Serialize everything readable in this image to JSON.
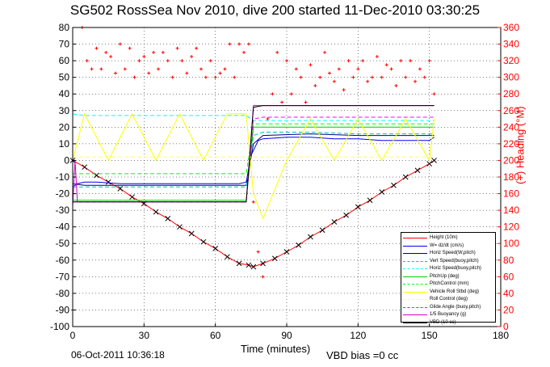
{
  "chart_data": {
    "type": "line",
    "title": "SG502 RossSea Nov 2010, dive 200 started 11-Dec-2010 03:30:25",
    "xlabel": "Time (minutes)",
    "ylabel": "",
    "ylabel_right": "(+) Heading (°M)",
    "xlim": [
      0,
      180
    ],
    "ylim": [
      -100,
      80
    ],
    "ylim_right": [
      0,
      360
    ],
    "x_ticks": [
      0,
      30,
      60,
      90,
      120,
      150,
      180
    ],
    "y_ticks": [
      -100,
      -90,
      -80,
      -70,
      -60,
      -50,
      -40,
      -30,
      -20,
      -10,
      0,
      10,
      20,
      30,
      40,
      50,
      60,
      70,
      80
    ],
    "y_ticks_right": [
      0,
      20,
      40,
      60,
      80,
      100,
      120,
      140,
      160,
      180,
      200,
      220,
      240,
      260,
      280,
      300,
      320,
      340,
      360
    ],
    "grid": true,
    "legend_position": "bottom-right",
    "series": [
      {
        "name": "Height (10m)",
        "color": "#ff0000",
        "style": "solid",
        "marker": "x",
        "x": [
          0,
          5,
          10,
          15,
          20,
          25,
          30,
          35,
          40,
          45,
          50,
          55,
          60,
          65,
          70,
          74,
          76,
          80,
          85,
          90,
          95,
          100,
          105,
          110,
          115,
          120,
          125,
          130,
          135,
          140,
          145,
          150,
          152
        ],
        "y": [
          0,
          -4,
          -9,
          -13,
          -17,
          -22,
          -26,
          -31,
          -35,
          -40,
          -44,
          -49,
          -53,
          -58,
          -62,
          -63,
          -64,
          -62,
          -59,
          -55,
          -51,
          -46,
          -42,
          -37,
          -33,
          -28,
          -24,
          -19,
          -15,
          -10,
          -6,
          -2,
          0
        ]
      },
      {
        "name": "W= dz/dt (cm/s)",
        "color": "#0000ff",
        "style": "solid",
        "x": [
          0,
          2,
          5,
          10,
          20,
          30,
          40,
          50,
          60,
          70,
          73,
          75,
          78,
          80,
          90,
          100,
          110,
          120,
          130,
          140,
          150,
          152
        ],
        "y": [
          -16,
          -14,
          -13,
          -13,
          -14,
          -14,
          -14,
          -14,
          -14,
          -14,
          -13,
          3,
          12,
          13,
          14,
          14,
          13,
          13,
          12,
          12,
          12,
          14
        ]
      },
      {
        "name": "Horiz Speed(W,pitch)",
        "color": "#000080",
        "style": "solid",
        "x": [
          0,
          5,
          20,
          40,
          60,
          73,
          76,
          80,
          100,
          120,
          140,
          152
        ],
        "y": [
          -14,
          -15,
          -15,
          -15,
          -15,
          -15,
          10,
          15,
          16,
          15,
          15,
          15
        ]
      },
      {
        "name": "Vert Speed(buoy,pitch)",
        "color": "#00bfbf",
        "style": "dashed",
        "x": [
          0,
          5,
          20,
          40,
          60,
          73,
          76,
          80,
          100,
          120,
          140,
          152
        ],
        "y": [
          -16,
          -16,
          -16,
          -16,
          -16,
          -16,
          15,
          17,
          17,
          16,
          16,
          16
        ]
      },
      {
        "name": "Horiz Speed(buoy,pitch)",
        "color": "#00ffff",
        "style": "dashed",
        "x": [
          0,
          5,
          20,
          40,
          60,
          73,
          76,
          80,
          100,
          120,
          140,
          152
        ],
        "y": [
          28,
          27,
          27,
          27,
          27,
          27,
          24,
          24,
          24,
          24,
          24,
          24
        ]
      },
      {
        "name": "PitchUp (deg)",
        "color": "#00cc00",
        "style": "solid",
        "x": [
          0,
          5,
          20,
          40,
          60,
          73,
          76,
          80,
          100,
          120,
          140,
          152
        ],
        "y": [
          -24,
          -24,
          -24,
          -24,
          -24,
          -24,
          20,
          20,
          20,
          20,
          20,
          20
        ]
      },
      {
        "name": "PitchControl (mm)",
        "color": "#00ff00",
        "style": "dashed",
        "x": [
          0,
          5,
          20,
          40,
          60,
          73,
          76,
          80,
          100,
          120,
          140,
          152
        ],
        "y": [
          -8,
          -8,
          -8,
          -8,
          -8,
          -8,
          22,
          22,
          22,
          22,
          22,
          22
        ]
      },
      {
        "name": "Vehicle Roll Stbd (deg)",
        "color": "#ffff00",
        "style": "solid",
        "x": [
          0,
          5,
          15,
          25,
          35,
          45,
          55,
          65,
          73,
          76,
          80,
          90,
          100,
          110,
          120,
          130,
          140,
          150,
          152
        ],
        "y": [
          0,
          28,
          0,
          28,
          0,
          28,
          0,
          28,
          28,
          -20,
          -35,
          0,
          25,
          0,
          25,
          0,
          25,
          0,
          25
        ]
      },
      {
        "name": "Roll Control (deg)",
        "color": "#ffff66",
        "style": "dashed",
        "x": [
          0,
          5,
          20,
          40,
          60,
          73,
          76,
          80,
          100,
          120,
          140,
          152
        ],
        "y": [
          2,
          2,
          2,
          2,
          2,
          2,
          2,
          2,
          2,
          2,
          2,
          2
        ]
      },
      {
        "name": "Glide Angle (buoy,pitch)",
        "color": "#ff00ff",
        "style": "dashed",
        "x": [
          0,
          5,
          20,
          40,
          60,
          73,
          76,
          80,
          100,
          120,
          140,
          152
        ],
        "y": [
          -25,
          -25,
          -25,
          -25,
          -25,
          -25,
          25,
          26,
          26,
          26,
          26,
          26
        ]
      },
      {
        "name": "1/5 Buoyancy (g)",
        "color": "#cc00cc",
        "style": "solid",
        "x": [
          0,
          1,
          2,
          5,
          20,
          40,
          60,
          73,
          76,
          80,
          100,
          120,
          140,
          152
        ],
        "y": [
          -28,
          0,
          -25,
          -25,
          -25,
          -25,
          -25,
          -25,
          33,
          33,
          33,
          33,
          33,
          33
        ]
      },
      {
        "name": "VBD (10 cc)",
        "color": "#000000",
        "style": "solid",
        "x": [
          0,
          5,
          20,
          40,
          60,
          73,
          76,
          80,
          100,
          120,
          140,
          152
        ],
        "y": [
          -25,
          -25,
          -25,
          -25,
          -25,
          -25,
          32,
          33,
          33,
          33,
          33,
          33
        ]
      }
    ],
    "heading_series": {
      "axis": "right",
      "color": "#ff0000",
      "marker": "+",
      "x": [
        0,
        4,
        6,
        8,
        10,
        12,
        14,
        16,
        18,
        20,
        22,
        24,
        26,
        28,
        30,
        32,
        34,
        36,
        38,
        40,
        42,
        44,
        46,
        48,
        50,
        52,
        54,
        56,
        58,
        60,
        62,
        64,
        66,
        68,
        70,
        72,
        74,
        76,
        78,
        80,
        82,
        84,
        86,
        88,
        90,
        92,
        94,
        96,
        98,
        100,
        102,
        104,
        106,
        108,
        110,
        112,
        114,
        116,
        118,
        120,
        122,
        124,
        126,
        128,
        130,
        132,
        134,
        136,
        138,
        140,
        142,
        144,
        146,
        148,
        150,
        152
      ],
      "y": [
        20,
        360,
        320,
        310,
        335,
        310,
        330,
        325,
        305,
        340,
        310,
        335,
        300,
        320,
        325,
        305,
        330,
        310,
        330,
        320,
        300,
        335,
        320,
        305,
        325,
        335,
        310,
        300,
        320,
        300,
        305,
        310,
        340,
        300,
        340,
        330,
        340,
        150,
        90,
        60,
        250,
        280,
        330,
        270,
        320,
        280,
        310,
        300,
        270,
        315,
        290,
        300,
        330,
        305,
        295,
        310,
        285,
        320,
        300,
        310,
        320,
        295,
        300,
        325,
        300,
        315,
        310,
        290,
        320,
        300,
        320,
        295,
        310,
        300,
        320,
        280
      ]
    },
    "footer_date": "06-Oct-2011 10:36:18",
    "vbd_bias": "VBD bias =0 cc"
  }
}
